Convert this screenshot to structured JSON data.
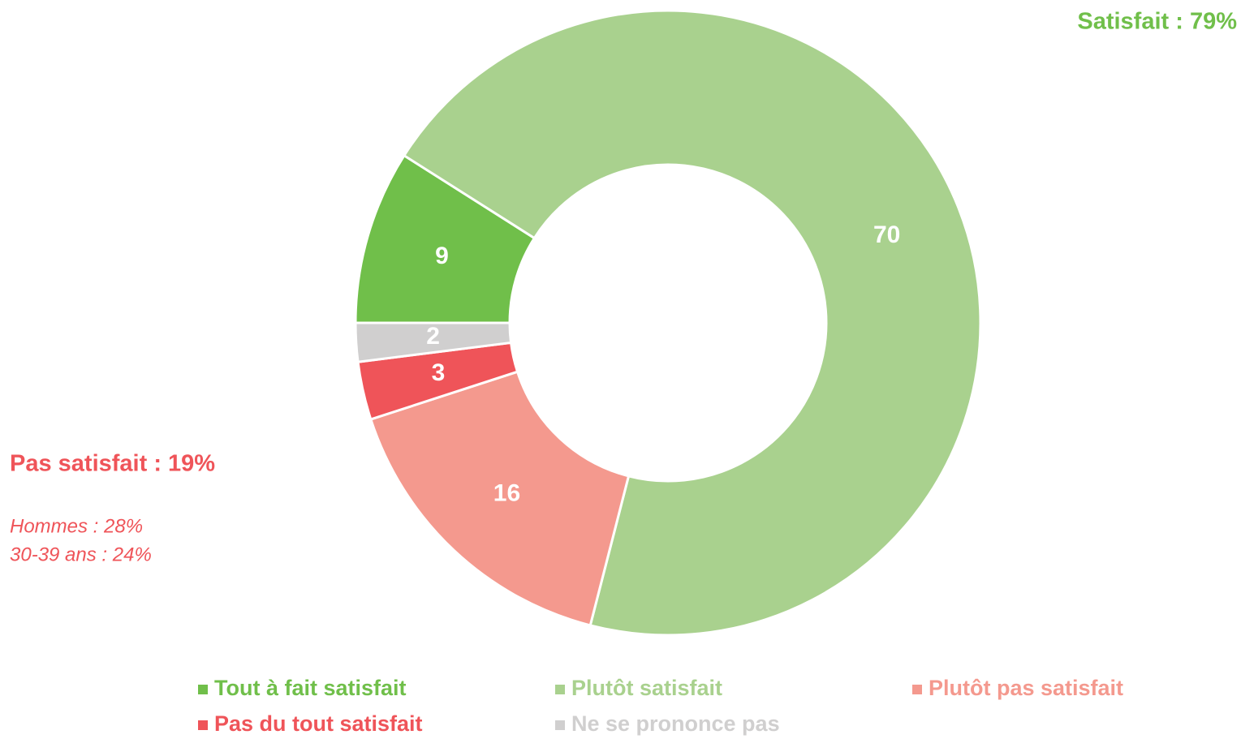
{
  "chart_data": {
    "type": "donut",
    "categories": [
      "Tout à fait satisfait",
      "Plutôt satisfait",
      "Plutôt pas satisfait",
      "Pas du tout satisfait",
      "Ne se prononce pas"
    ],
    "values": [
      9,
      70,
      16,
      3,
      2
    ],
    "colors": [
      "#70bf4a",
      "#a9d18e",
      "#f4998e",
      "#ef5459",
      "#d0cfcf"
    ],
    "annotations": [
      "Satisfait : 79%",
      "Pas satisfait : 19%",
      "Hommes : 28%",
      "30-39 ans : 24%"
    ],
    "legend": "bottom"
  }
}
